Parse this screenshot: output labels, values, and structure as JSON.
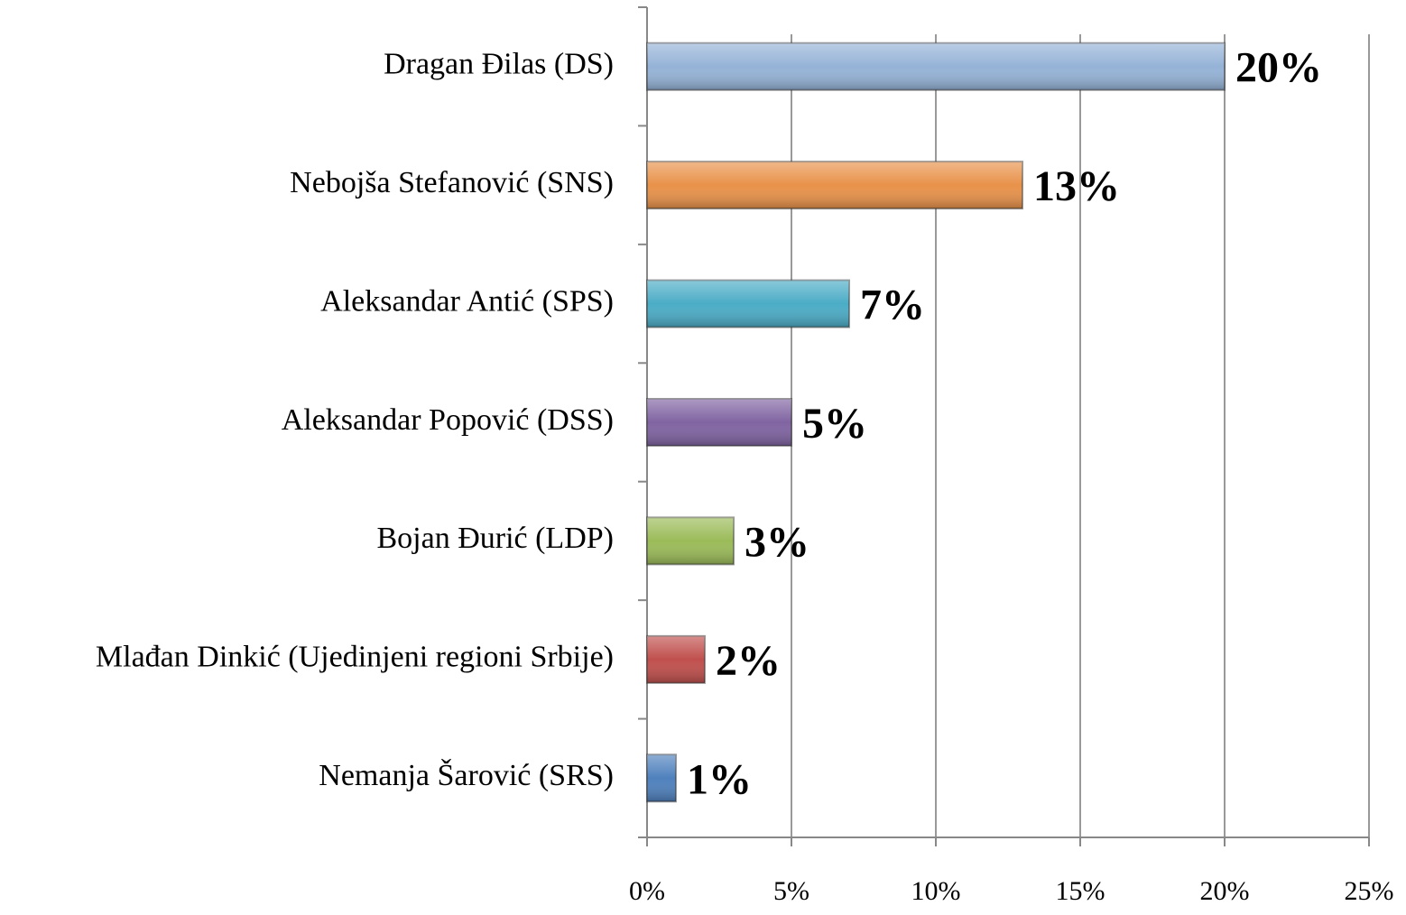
{
  "chart_data": {
    "type": "bar",
    "orientation": "horizontal",
    "categories": [
      "Dragan Đilas (DS)",
      "Nebojša Stefanović (SNS)",
      "Aleksandar Antić (SPS)",
      "Aleksandar Popović (DSS)",
      "Bojan Đurić (LDP)",
      "Mlađan Dinkić (Ujedinjeni regioni Srbije)",
      "Nemanja Šarović (SRS)"
    ],
    "values": [
      20,
      13,
      7,
      5,
      3,
      2,
      1
    ],
    "value_labels": [
      "20%",
      "13%",
      "7%",
      "5%",
      "3%",
      "2%",
      "1%"
    ],
    "colors": [
      "#95b3d7",
      "#e8924a",
      "#4bacc6",
      "#8064a2",
      "#9bbb59",
      "#c0504d",
      "#4f81bd"
    ],
    "xlim": [
      0,
      25
    ],
    "xticks": [
      {
        "value": 0,
        "label": "0%"
      },
      {
        "value": 5,
        "label": "5%"
      },
      {
        "value": 10,
        "label": "10%"
      },
      {
        "value": 15,
        "label": "15%"
      },
      {
        "value": 20,
        "label": "20%"
      },
      {
        "value": 25,
        "label": "25%"
      }
    ],
    "grid": true
  }
}
